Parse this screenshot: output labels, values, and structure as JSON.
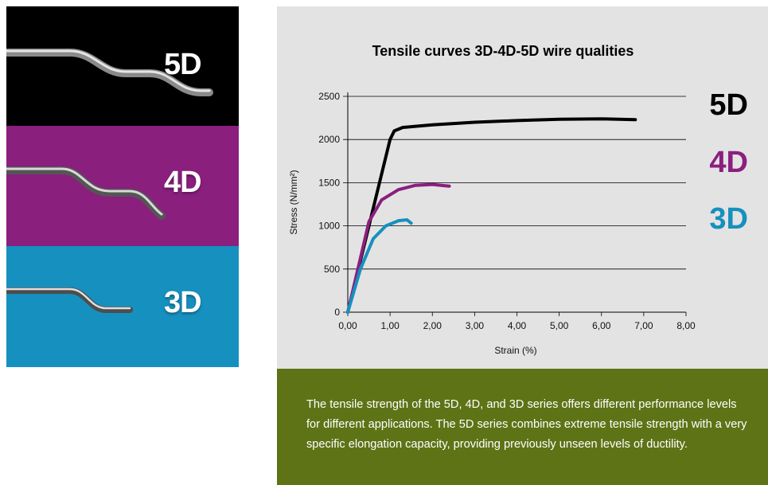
{
  "panels": [
    {
      "label": "5D",
      "color": "#000000"
    },
    {
      "label": "4D",
      "color": "#8a1f7e"
    },
    {
      "label": "3D",
      "color": "#1690be"
    }
  ],
  "chart_data": {
    "type": "line",
    "title": "Tensile curves 3D-4D-5D wire qualities",
    "xlabel": "Strain (%)",
    "ylabel": "Stress (N/mm²)",
    "xlim": [
      0,
      8
    ],
    "ylim": [
      0,
      2500
    ],
    "x_ticks": [
      "0,00",
      "1,00",
      "2,00",
      "3,00",
      "4,00",
      "5,00",
      "6,00",
      "7,00",
      "8,00"
    ],
    "y_ticks": [
      "0",
      "500",
      "1000",
      "1500",
      "2000",
      "2500"
    ],
    "grid": "horizontal",
    "legend_position": "right",
    "series": [
      {
        "name": "5D",
        "color": "#000000",
        "x": [
          0,
          0.5,
          1.0,
          1.1,
          1.3,
          2.0,
          3.0,
          4.0,
          5.0,
          6.0,
          6.8
        ],
        "y": [
          0,
          1000,
          2000,
          2100,
          2140,
          2170,
          2200,
          2220,
          2235,
          2240,
          2230
        ]
      },
      {
        "name": "4D",
        "color": "#8a1f7e",
        "x": [
          0,
          0.5,
          0.8,
          1.2,
          1.6,
          2.0,
          2.4
        ],
        "y": [
          0,
          1050,
          1300,
          1420,
          1470,
          1480,
          1460
        ]
      },
      {
        "name": "3D",
        "color": "#1690be",
        "x": [
          0,
          0.3,
          0.6,
          0.9,
          1.2,
          1.4,
          1.5
        ],
        "y": [
          0,
          500,
          850,
          1000,
          1060,
          1070,
          1030
        ]
      }
    ]
  },
  "caption": "The tensile strength of the 5D, 4D, and 3D series offers different performance levels for different applications. The 5D series combines extreme tensile strength with a very specific elongation capacity, providing previously unseen levels of ductility."
}
